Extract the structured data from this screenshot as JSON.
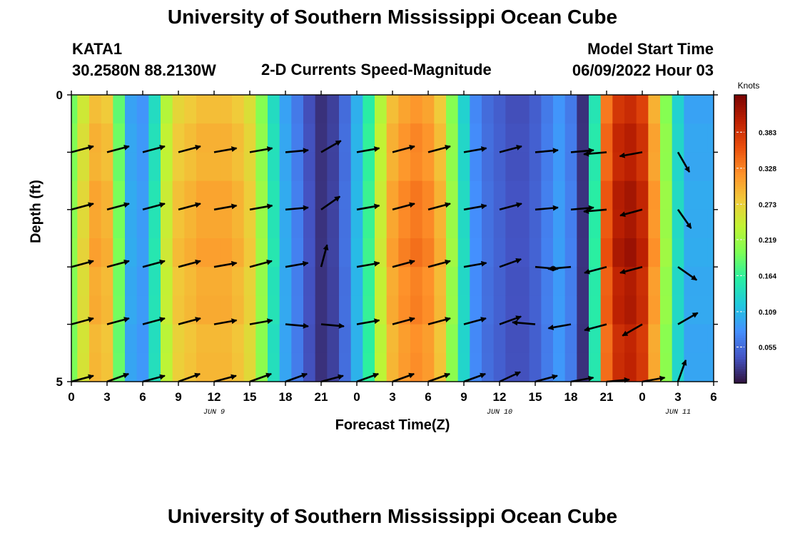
{
  "titles": {
    "top": "University of Southern Mississippi Ocean Cube",
    "bottom": "University of Southern Mississippi Ocean Cube"
  },
  "station": {
    "id": "KATA1",
    "coords": "30.2580N  88.2130W"
  },
  "subtitle": "2-D Currents Speed-Magnitude",
  "model": {
    "label": "Model Start Time",
    "value": "06/09/2022 Hour 03"
  },
  "colorbar": {
    "unit_label": "Knots",
    "ticks": [
      0.055,
      0.109,
      0.164,
      0.219,
      0.273,
      0.328,
      0.383
    ],
    "min": 0.0,
    "max": 0.44,
    "colors": [
      "#30123b",
      "#4454c4",
      "#4490fe",
      "#1fc8de",
      "#29efa2",
      "#7dff56",
      "#c1f334",
      "#f1ca3a",
      "#fe922a",
      "#ea4f0d",
      "#be2102",
      "#7a0403"
    ]
  },
  "chart_data": {
    "type": "heatmap",
    "title": "2-D Currents Speed-Magnitude",
    "xlabel": "Forecast Time(Z)",
    "ylabel": "Depth (ft)",
    "x_hours": [
      0,
      3,
      6,
      9,
      12,
      15,
      18,
      21,
      24,
      27,
      30,
      33,
      36,
      39,
      42,
      45,
      48,
      51,
      54
    ],
    "x_tick_labels": [
      "0",
      "3",
      "6",
      "9",
      "12",
      "15",
      "18",
      "21",
      "0",
      "3",
      "6",
      "9",
      "12",
      "15",
      "18",
      "21",
      "0",
      "3",
      "6"
    ],
    "xlim": [
      0,
      54
    ],
    "y_tick_labels": [
      "0",
      "5"
    ],
    "ylim": [
      0,
      5
    ],
    "date_labels": [
      {
        "hour": 12,
        "text": "JUN 9"
      },
      {
        "hour": 36,
        "text": "JUN 10"
      },
      {
        "hour": 51,
        "text": "JUN 11"
      }
    ],
    "speed_profile": {
      "hours": [
        0,
        1,
        2,
        3,
        4,
        5,
        6,
        7,
        8,
        9,
        10,
        11,
        12,
        13,
        14,
        15,
        16,
        17,
        18,
        19,
        20,
        21,
        22,
        23,
        24,
        25,
        26,
        27,
        28,
        29,
        30,
        31,
        32,
        33,
        34,
        35,
        36,
        37,
        38,
        39,
        40,
        41,
        42,
        43,
        44,
        45,
        46,
        47,
        48,
        49,
        50,
        51,
        52,
        53,
        54
      ],
      "knots": [
        0.21,
        0.27,
        0.31,
        0.3,
        0.2,
        0.1,
        0.09,
        0.15,
        0.25,
        0.29,
        0.3,
        0.31,
        0.31,
        0.31,
        0.3,
        0.28,
        0.22,
        0.15,
        0.1,
        0.07,
        0.04,
        0.02,
        0.03,
        0.06,
        0.11,
        0.17,
        0.25,
        0.31,
        0.33,
        0.34,
        0.33,
        0.3,
        0.22,
        0.14,
        0.08,
        0.06,
        0.05,
        0.04,
        0.04,
        0.05,
        0.07,
        0.09,
        0.07,
        0.02,
        0.16,
        0.36,
        0.41,
        0.42,
        0.4,
        0.32,
        0.22,
        0.14,
        0.1,
        0.1,
        0.1
      ]
    },
    "vectors": {
      "depths_ft": [
        1,
        2,
        3,
        4,
        5
      ],
      "hours": [
        0,
        3,
        6,
        9,
        12,
        15,
        18,
        21,
        24,
        27,
        30,
        33,
        36,
        39,
        42,
        45,
        48,
        51
      ],
      "direction_deg": [
        [
          75,
          75,
          75,
          75,
          80,
          80,
          85,
          60,
          80,
          75,
          75,
          80,
          75,
          85,
          85,
          265,
          260,
          150
        ],
        [
          75,
          75,
          75,
          75,
          80,
          80,
          85,
          55,
          80,
          75,
          75,
          80,
          75,
          85,
          85,
          265,
          255,
          145
        ],
        [
          75,
          75,
          75,
          75,
          80,
          75,
          80,
          15,
          80,
          75,
          75,
          80,
          70,
          95,
          265,
          255,
          255,
          125
        ],
        [
          75,
          75,
          75,
          75,
          80,
          80,
          95,
          95,
          80,
          75,
          75,
          75,
          70,
          275,
          260,
          255,
          240,
          60
        ],
        [
          75,
          70,
          75,
          70,
          75,
          70,
          70,
          75,
          70,
          70,
          70,
          70,
          65,
          75,
          80,
          85,
          80,
          20
        ]
      ]
    }
  }
}
